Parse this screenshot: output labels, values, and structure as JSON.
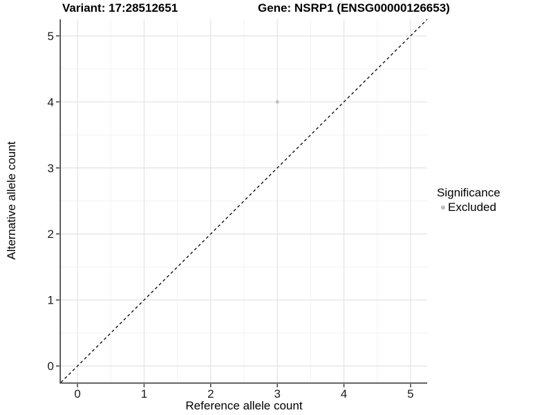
{
  "titles": {
    "variant": "Variant: 17:28512651",
    "gene": "Gene: NSRP1 (ENSG00000126653)"
  },
  "legend": {
    "title": "Significance",
    "items": [
      {
        "label": "Excluded",
        "color": "#bdbdbd"
      }
    ]
  },
  "chart_data": {
    "type": "scatter",
    "title": "Variant: 17:28512651  /  Gene: NSRP1 (ENSG00000126653)",
    "xlabel": "Reference allele count",
    "ylabel": "Alternative allele count",
    "xlim": [
      -0.25,
      5.25
    ],
    "ylim": [
      -0.25,
      5.25
    ],
    "x_ticks": [
      0,
      1,
      2,
      3,
      4,
      5
    ],
    "y_ticks": [
      0,
      1,
      2,
      3,
      4,
      5
    ],
    "x_minor_ticks": [
      0.5,
      1.5,
      2.5,
      3.5,
      4.5
    ],
    "y_minor_ticks": [
      0.5,
      1.5,
      2.5,
      3.5,
      4.5
    ],
    "grid": true,
    "legend_position": "right",
    "series": [
      {
        "name": "Excluded",
        "color": "#bdbdbd",
        "points": [
          {
            "x": 3,
            "y": 4
          }
        ]
      }
    ],
    "reference_line": {
      "type": "identity",
      "slope": 1,
      "intercept": 0,
      "style": "dashed",
      "color": "#111111"
    }
  },
  "colors": {
    "background": "#ffffff",
    "grid_major": "#e3e3e3",
    "grid_minor": "#f2f2f2",
    "axis_line": "#404040",
    "tick": "#333333",
    "tick_label": "#1a1a1a",
    "text": "#000000",
    "point": "#bdbdbd",
    "ref_line": "#111111"
  }
}
